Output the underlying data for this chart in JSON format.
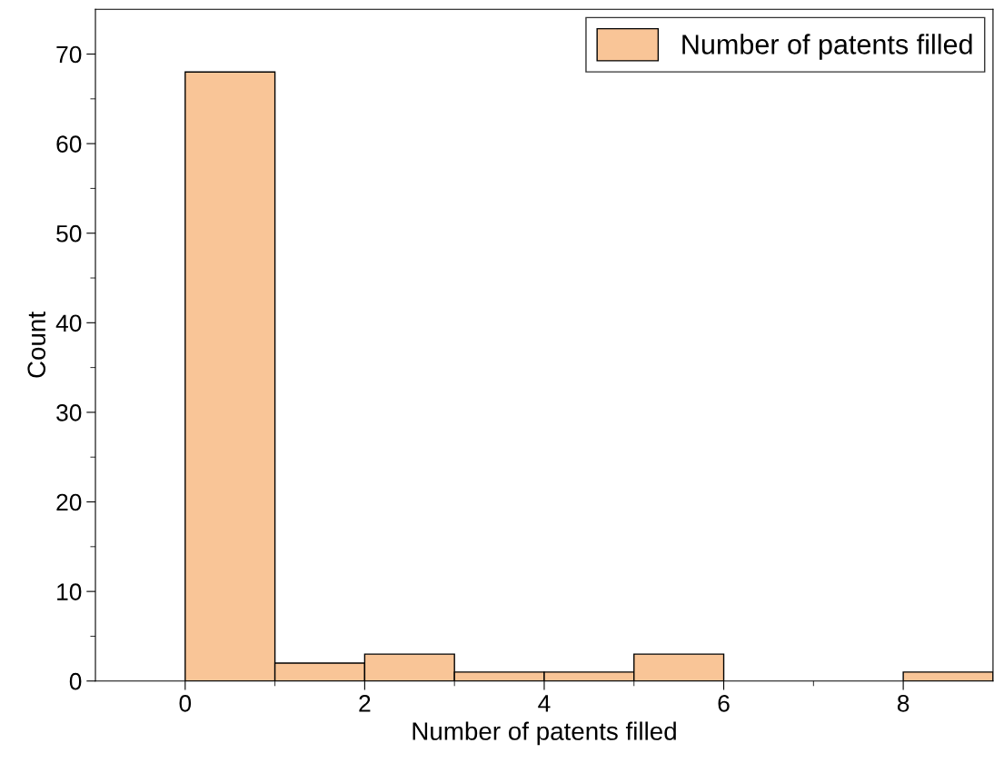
{
  "chart_data": {
    "type": "histogram",
    "xlabel": "Number of patents filled",
    "ylabel": "Count",
    "bins": [
      0,
      1,
      2,
      3,
      4,
      5,
      6,
      7,
      8,
      9
    ],
    "series": [
      {
        "name": "Number of patents filled",
        "color": "#f9c597",
        "values": [
          68,
          2,
          3,
          1,
          1,
          3,
          0,
          0,
          1
        ]
      }
    ],
    "xlim": [
      -1,
      9
    ],
    "ylim": [
      0,
      75
    ],
    "xticks": [
      0,
      {
        "value": 1,
        "label": null
      },
      2,
      {
        "value": 3,
        "label": null
      },
      4,
      {
        "value": 5,
        "label": null
      },
      6,
      {
        "value": 7,
        "label": null
      },
      8
    ],
    "yticks": [
      0,
      {
        "value": 5,
        "label": null
      },
      10,
      {
        "value": 15,
        "label": null
      },
      20,
      {
        "value": 25,
        "label": null
      },
      30,
      {
        "value": 35,
        "label": null
      },
      40,
      {
        "value": 45,
        "label": null
      },
      50,
      {
        "value": 55,
        "label": null
      },
      60,
      {
        "value": 65,
        "label": null
      },
      70
    ],
    "legend": "top right",
    "grid": false
  }
}
